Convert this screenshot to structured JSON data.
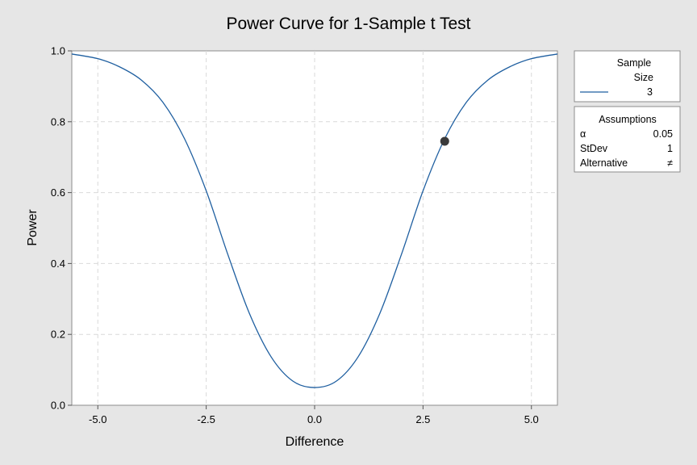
{
  "chart_data": {
    "type": "line",
    "title": "Power Curve for 1-Sample t Test",
    "xlabel": "Difference",
    "ylabel": "Power",
    "xlim": [
      -5.6,
      5.6
    ],
    "ylim": [
      0,
      1
    ],
    "xticks": [
      -5,
      -2.5,
      0,
      2.5,
      5
    ],
    "xtick_labels": [
      "-5.0",
      "-2.5",
      "0.0",
      "2.5",
      "5.0"
    ],
    "yticks": [
      0,
      0.2,
      0.4,
      0.6,
      0.8,
      1
    ],
    "ytick_labels": [
      "0.0",
      "0.2",
      "0.4",
      "0.6",
      "0.8",
      "1.0"
    ],
    "grid": true,
    "series": [
      {
        "name": "3",
        "color": "#1f5fa0",
        "x": [
          -5.6,
          -5.0,
          -4.5,
          -4.0,
          -3.5,
          -3.0,
          -2.5,
          -2.0,
          -1.5,
          -1.0,
          -0.5,
          0,
          0.5,
          1.0,
          1.5,
          2.0,
          2.5,
          3.0,
          3.5,
          4.0,
          4.5,
          5.0,
          5.6
        ],
        "y": [
          0.991,
          0.978,
          0.955,
          0.918,
          0.855,
          0.752,
          0.605,
          0.425,
          0.258,
          0.136,
          0.068,
          0.05,
          0.068,
          0.136,
          0.258,
          0.425,
          0.605,
          0.752,
          0.855,
          0.918,
          0.955,
          0.978,
          0.991
        ]
      }
    ],
    "highlight_point": {
      "x": 3.0,
      "y": 0.745
    }
  },
  "legend": {
    "header_line1": "Sample",
    "header_line2": "Size",
    "entry_label": "3",
    "line_color": "#1f5fa0"
  },
  "assumptions": {
    "title": "Assumptions",
    "rows": [
      {
        "label": "α",
        "value": "0.05"
      },
      {
        "label": "StDev",
        "value": "1"
      },
      {
        "label": "Alternative",
        "value": "≠"
      }
    ]
  }
}
